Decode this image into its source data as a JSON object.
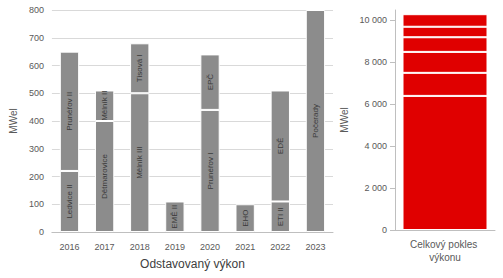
{
  "chart_data": [
    {
      "type": "bar",
      "stacked": true,
      "categories": [
        "2016",
        "2017",
        "2018",
        "2019",
        "2020",
        "2021",
        "2022",
        "2023"
      ],
      "series": [
        {
          "values": [
            220,
            400,
            500,
            110,
            440,
            100,
            110,
            800
          ],
          "labels": [
            "Ledvice II",
            "Dětmarovice",
            "Mělník III",
            "EMĚ II",
            "Prunéřov I",
            "EHO",
            "ETI II",
            "Počerady"
          ],
          "color": "#8c8c8c"
        },
        {
          "values": [
            430,
            110,
            180,
            null,
            200,
            null,
            400,
            null
          ],
          "labels": [
            "Prunéřov II",
            "Mělník II",
            "Tisová I",
            null,
            "EPČ",
            null,
            "EDĚ",
            null
          ],
          "color": "#8c8c8c"
        }
      ],
      "xlabel": "Odstavovaný výkon",
      "ylabel": "MWel",
      "ylim": [
        0,
        800
      ],
      "yticks": [
        0,
        100,
        200,
        300,
        400,
        500,
        600,
        700,
        800
      ],
      "grid": true
    },
    {
      "type": "bar",
      "stacked": true,
      "categories": [
        "Celkový pokles výkonu"
      ],
      "series": [
        {
          "values": [
            6400
          ],
          "color": "#e00000"
        },
        {
          "values": [
            1100
          ],
          "color": "#e00000"
        },
        {
          "values": [
            1000
          ],
          "color": "#e00000"
        },
        {
          "values": [
            700
          ],
          "color": "#e00000"
        },
        {
          "values": [
            500
          ],
          "color": "#e00000"
        },
        {
          "values": [
            600
          ],
          "color": "#e00000"
        }
      ],
      "ylabel": "MWel",
      "ylim": [
        0,
        10500
      ],
      "yticks": [
        0,
        {
          "value": 2000,
          "label": "2 000"
        },
        {
          "value": 4000,
          "label": "4 000"
        },
        {
          "value": 6000,
          "label": "6 000"
        },
        {
          "value": 8000,
          "label": "8 000"
        },
        {
          "value": 10000,
          "label": "10 000"
        }
      ],
      "grid": false
    }
  ]
}
